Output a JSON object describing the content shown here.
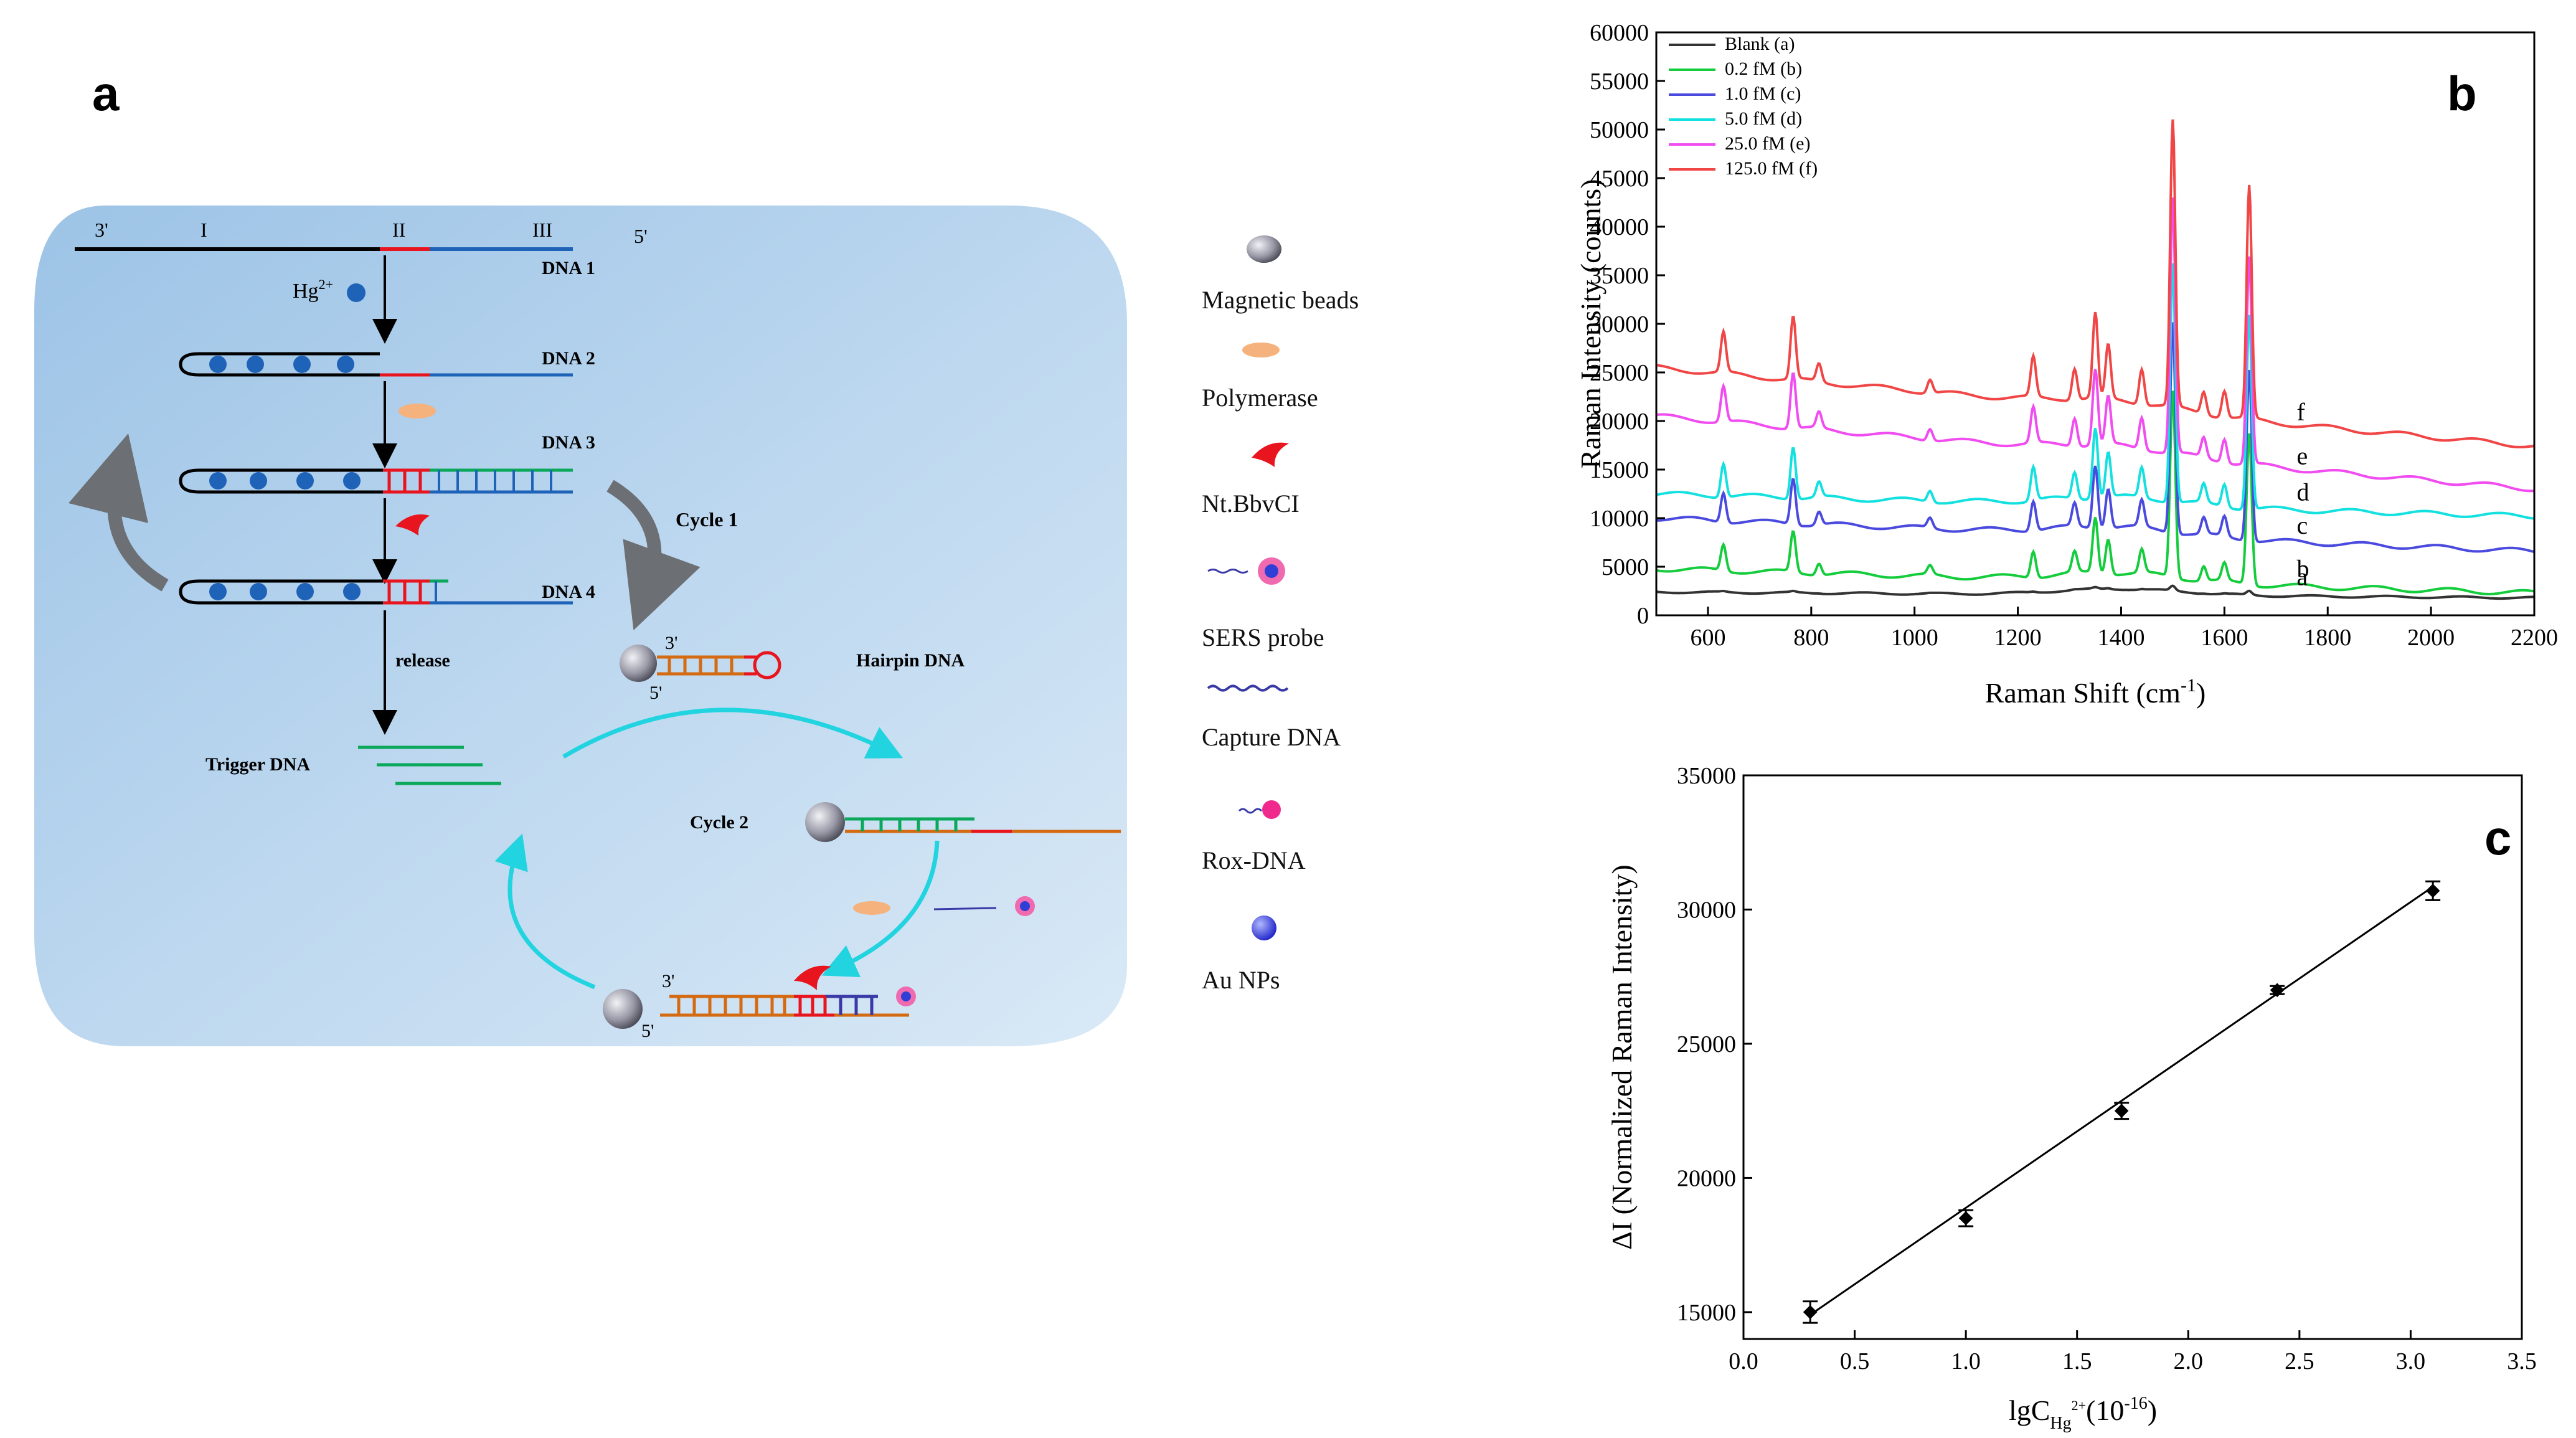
{
  "panels": {
    "a": "a",
    "b": "b",
    "c": "c"
  },
  "colors": {
    "bg_grad_a": "#a7c9e9",
    "bg_grad_b": "#d4e6f6",
    "black_dna": "#000000",
    "red_dna": "#e8141e",
    "blue_dna": "#1f63b8",
    "green_dna": "#0aa85a",
    "orange_dna": "#d46a12",
    "cyan_arrow": "#22d3e0",
    "bead": "#1f63b8"
  },
  "schematic": {
    "end_3": "3'",
    "end_5": "5'",
    "region_I": "I",
    "region_II": "II",
    "region_III": "III",
    "dna1": "DNA 1",
    "dna2": "DNA 2",
    "dna3": "DNA 3",
    "dna4": "DNA 4",
    "hg_base": "Hg",
    "hg_sup": "2+",
    "cycle1": "Cycle 1",
    "cycle2": "Cycle 2",
    "release": "release",
    "trigger": "Trigger DNA",
    "hairpin": "Hairpin DNA",
    "hp_3": "3'",
    "hp_5": "5'",
    "bot_3": "3'",
    "bot_5": "5'"
  },
  "legend": [
    {
      "icon": "magnetic-bead-icon",
      "label": "Magnetic beads"
    },
    {
      "icon": "polymerase-icon",
      "label": "Polymerase"
    },
    {
      "icon": "nickase-icon",
      "label": "Nt.BbvCI"
    },
    {
      "icon": "sers-probe-icon",
      "label": "SERS probe"
    },
    {
      "icon": "capture-dna-icon",
      "label": "Capture DNA"
    },
    {
      "icon": "rox-dna-icon",
      "label": "Rox-DNA"
    },
    {
      "icon": "au-np-icon",
      "label": "Au NPs"
    }
  ],
  "chart_data": [
    {
      "type": "line",
      "title": "",
      "xlabel": "Raman Shift (cm",
      "xlabel_sup": "-1",
      "xlabel_end": ")",
      "ylabel": "Raman Intensity (counts)",
      "xlim": [
        500,
        2200
      ],
      "ylim": [
        0,
        60000
      ],
      "xticks": [
        "600",
        "800",
        "1000",
        "1200",
        "1400",
        "1600",
        "1800",
        "2000",
        "2200"
      ],
      "yticks": [
        "0",
        "5000",
        "10000",
        "15000",
        "20000",
        "25000",
        "30000",
        "35000",
        "40000",
        "45000",
        "50000",
        "55000",
        "60000"
      ],
      "peaks": [
        {
          "x": 630,
          "h": 0.45
        },
        {
          "x": 765,
          "h": 0.7
        },
        {
          "x": 815,
          "h": 0.2
        },
        {
          "x": 1030,
          "h": 0.15
        },
        {
          "x": 1230,
          "h": 0.45
        },
        {
          "x": 1310,
          "h": 0.35
        },
        {
          "x": 1350,
          "h": 0.95
        },
        {
          "x": 1375,
          "h": 0.6
        },
        {
          "x": 1440,
          "h": 0.4
        },
        {
          "x": 1500,
          "h": 3.2
        },
        {
          "x": 1560,
          "h": 0.25
        },
        {
          "x": 1600,
          "h": 0.3
        },
        {
          "x": 1648,
          "h": 2.6
        }
      ],
      "series": [
        {
          "name": "Blank (a)",
          "tag": "a",
          "color": "#333333",
          "base_start": 2400,
          "base_end": 1800,
          "scale": 0
        },
        {
          "name": "0.2 fM (b)",
          "tag": "b",
          "color": "#14cc3c",
          "base_start": 4800,
          "base_end": 2300,
          "scale": 6000
        },
        {
          "name": "1.0 fM (c)",
          "tag": "c",
          "color": "#4a4ade",
          "base_start": 10000,
          "base_end": 6600,
          "scale": 6800
        },
        {
          "name": "5.0 fM (d)",
          "tag": "d",
          "color": "#14e0e0",
          "base_start": 12500,
          "base_end": 10200,
          "scale": 7700
        },
        {
          "name": "25.0 fM (e)",
          "tag": "e",
          "color": "#f04cf0",
          "base_start": 20500,
          "base_end": 13000,
          "scale": 8200
        },
        {
          "name": "125.0 fM (f)",
          "tag": "f",
          "color": "#f04646",
          "base_start": 25500,
          "base_end": 17400,
          "scale": 9200
        }
      ]
    },
    {
      "type": "scatter",
      "title": "",
      "xlabel": "lgC",
      "xlabel_sub": "Hg",
      "xlabel_sup": "2+",
      "xlabel_end": "(10",
      "xlabel_exp": "-16",
      "xlabel_close": ")",
      "ylabel": "ΔI (Normalized Raman Intensity)",
      "xlim": [
        0,
        3.5
      ],
      "ylim": [
        14000,
        35000
      ],
      "xticks": [
        "0.0",
        "0.5",
        "1.0",
        "1.5",
        "2.0",
        "2.5",
        "3.0",
        "3.5"
      ],
      "yticks": [
        "15000",
        "20000",
        "25000",
        "30000",
        "35000"
      ],
      "x": [
        0.3,
        1.0,
        1.7,
        2.4,
        3.1
      ],
      "y": [
        15000,
        18500,
        22500,
        27000,
        30700
      ],
      "err": [
        400,
        300,
        300,
        150,
        350
      ],
      "fit": {
        "x0": 0.3,
        "y0": 14900,
        "x1": 3.1,
        "y1": 30850
      }
    }
  ]
}
